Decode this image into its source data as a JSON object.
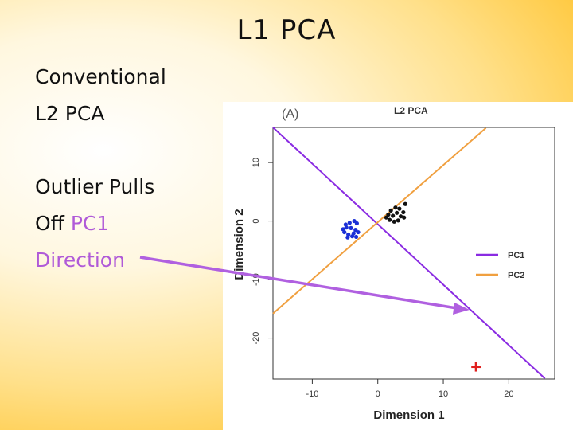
{
  "slide": {
    "title": "L1 PCA",
    "text_line1": "Conventional",
    "text_line2": "L2 PCA",
    "text_line3": "Outlier Pulls",
    "text_line4_prefix": "Off ",
    "text_line4_highlight": "PC1",
    "text_line5": "Direction",
    "highlight_color": "#b05ad8",
    "arrow_color": "#b060e0"
  },
  "chart_data": {
    "type": "scatter",
    "panel_label": "(A)",
    "title": "L2 PCA",
    "xlabel": "Dimension 1",
    "ylabel": "Dimension 2",
    "xlim": [
      -16,
      27
    ],
    "ylim": [
      -27,
      16
    ],
    "x_ticks": [
      -10,
      0,
      10,
      20
    ],
    "y_ticks": [
      10,
      0,
      -10,
      -20
    ],
    "series": [
      {
        "color": "#1a2fd6",
        "points": [
          [
            -4.8,
            -1.1
          ],
          [
            -4.3,
            -0.3
          ],
          [
            -3.6,
            0.0
          ],
          [
            -3.2,
            -0.4
          ],
          [
            -5.1,
            -1.9
          ],
          [
            -4.5,
            -2.3
          ],
          [
            -3.9,
            -2.6
          ],
          [
            -3.4,
            -1.5
          ],
          [
            -4.9,
            -0.6
          ],
          [
            -3.0,
            -1.9
          ],
          [
            -5.3,
            -1.4
          ],
          [
            -4.1,
            -1.2
          ],
          [
            -3.7,
            -2.1
          ],
          [
            -4.6,
            -2.8
          ],
          [
            -3.3,
            -2.7
          ]
        ]
      },
      {
        "color": "#111111",
        "points": [
          [
            1.8,
            0.2
          ],
          [
            2.3,
            0.9
          ],
          [
            2.9,
            1.4
          ],
          [
            3.5,
            0.8
          ],
          [
            2.5,
            -0.1
          ],
          [
            3.1,
            0.1
          ],
          [
            4.0,
            0.6
          ],
          [
            1.6,
            1.1
          ],
          [
            2.0,
            1.8
          ],
          [
            3.3,
            2.1
          ],
          [
            3.9,
            1.5
          ],
          [
            2.7,
            2.3
          ],
          [
            4.2,
            2.9
          ],
          [
            1.3,
            0.6
          ]
        ]
      },
      {
        "color": "#e0201e",
        "marker": "cross",
        "points": [
          [
            15.0,
            -24.9
          ]
        ]
      }
    ],
    "lines": [
      {
        "name": "PC1",
        "color": "#8a2be2",
        "p1": [
          -16,
          16
        ],
        "p2": [
          25.5,
          -26.9
        ]
      },
      {
        "name": "PC2",
        "color": "#f0a040",
        "p1": [
          -16,
          -15.8
        ],
        "p2": [
          16.5,
          15.9
        ]
      }
    ],
    "legend": {
      "position": "right",
      "items": [
        {
          "name": "PC1",
          "color": "#8a2be2"
        },
        {
          "name": "PC2",
          "color": "#f0a040"
        }
      ]
    }
  }
}
